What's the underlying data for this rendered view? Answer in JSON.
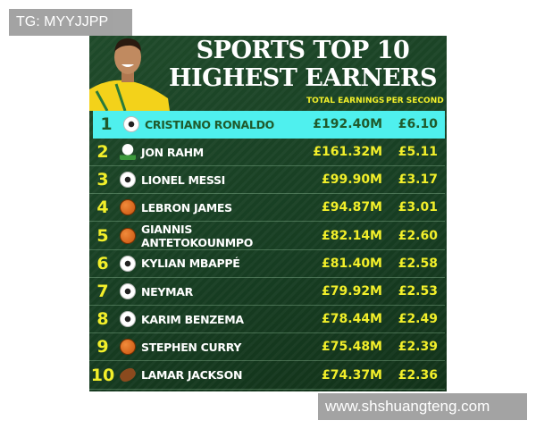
{
  "watermarks": {
    "top_left": "TG: MYYJJPP",
    "bottom_right": "www.shshuangteng.com"
  },
  "title": {
    "line1": "SPORTS TOP 10",
    "line2": "HIGHEST EARNERS"
  },
  "columns": {
    "earnings": "TOTAL EARNINGS",
    "per_second": "PER SECOND"
  },
  "colors": {
    "background": "#1a4224",
    "highlight": "#4ff0ee",
    "accent": "#f2ef2a"
  },
  "rows": [
    {
      "rank": "1",
      "sport_icon": "soccer-ball-icon",
      "name": "CRISTIANO RONALDO",
      "earnings": "£192.40M",
      "per_second": "£6.10"
    },
    {
      "rank": "2",
      "sport_icon": "golf-ball-icon",
      "name": "JON RAHM",
      "earnings": "£161.32M",
      "per_second": "£5.11"
    },
    {
      "rank": "3",
      "sport_icon": "soccer-ball-icon",
      "name": "LIONEL MESSI",
      "earnings": "£99.90M",
      "per_second": "£3.17"
    },
    {
      "rank": "4",
      "sport_icon": "basketball-icon",
      "name": "LEBRON JAMES",
      "earnings": "£94.87M",
      "per_second": "£3.01"
    },
    {
      "rank": "5",
      "sport_icon": "basketball-icon",
      "name": "GIANNIS ANTETOKOUNMPO",
      "earnings": "£82.14M",
      "per_second": "£2.60"
    },
    {
      "rank": "6",
      "sport_icon": "soccer-ball-icon",
      "name": "KYLIAN MBAPPÉ",
      "earnings": "£81.40M",
      "per_second": "£2.58"
    },
    {
      "rank": "7",
      "sport_icon": "soccer-ball-icon",
      "name": "NEYMAR",
      "earnings": "£79.92M",
      "per_second": "£2.53"
    },
    {
      "rank": "8",
      "sport_icon": "soccer-ball-icon",
      "name": "KARIM BENZEMA",
      "earnings": "£78.44M",
      "per_second": "£2.49"
    },
    {
      "rank": "9",
      "sport_icon": "basketball-icon",
      "name": "STEPHEN CURRY",
      "earnings": "£75.48M",
      "per_second": "£2.39"
    },
    {
      "rank": "10",
      "sport_icon": "american-football-icon",
      "name": "LAMAR JACKSON",
      "earnings": "£74.37M",
      "per_second": "£2.36"
    }
  ]
}
